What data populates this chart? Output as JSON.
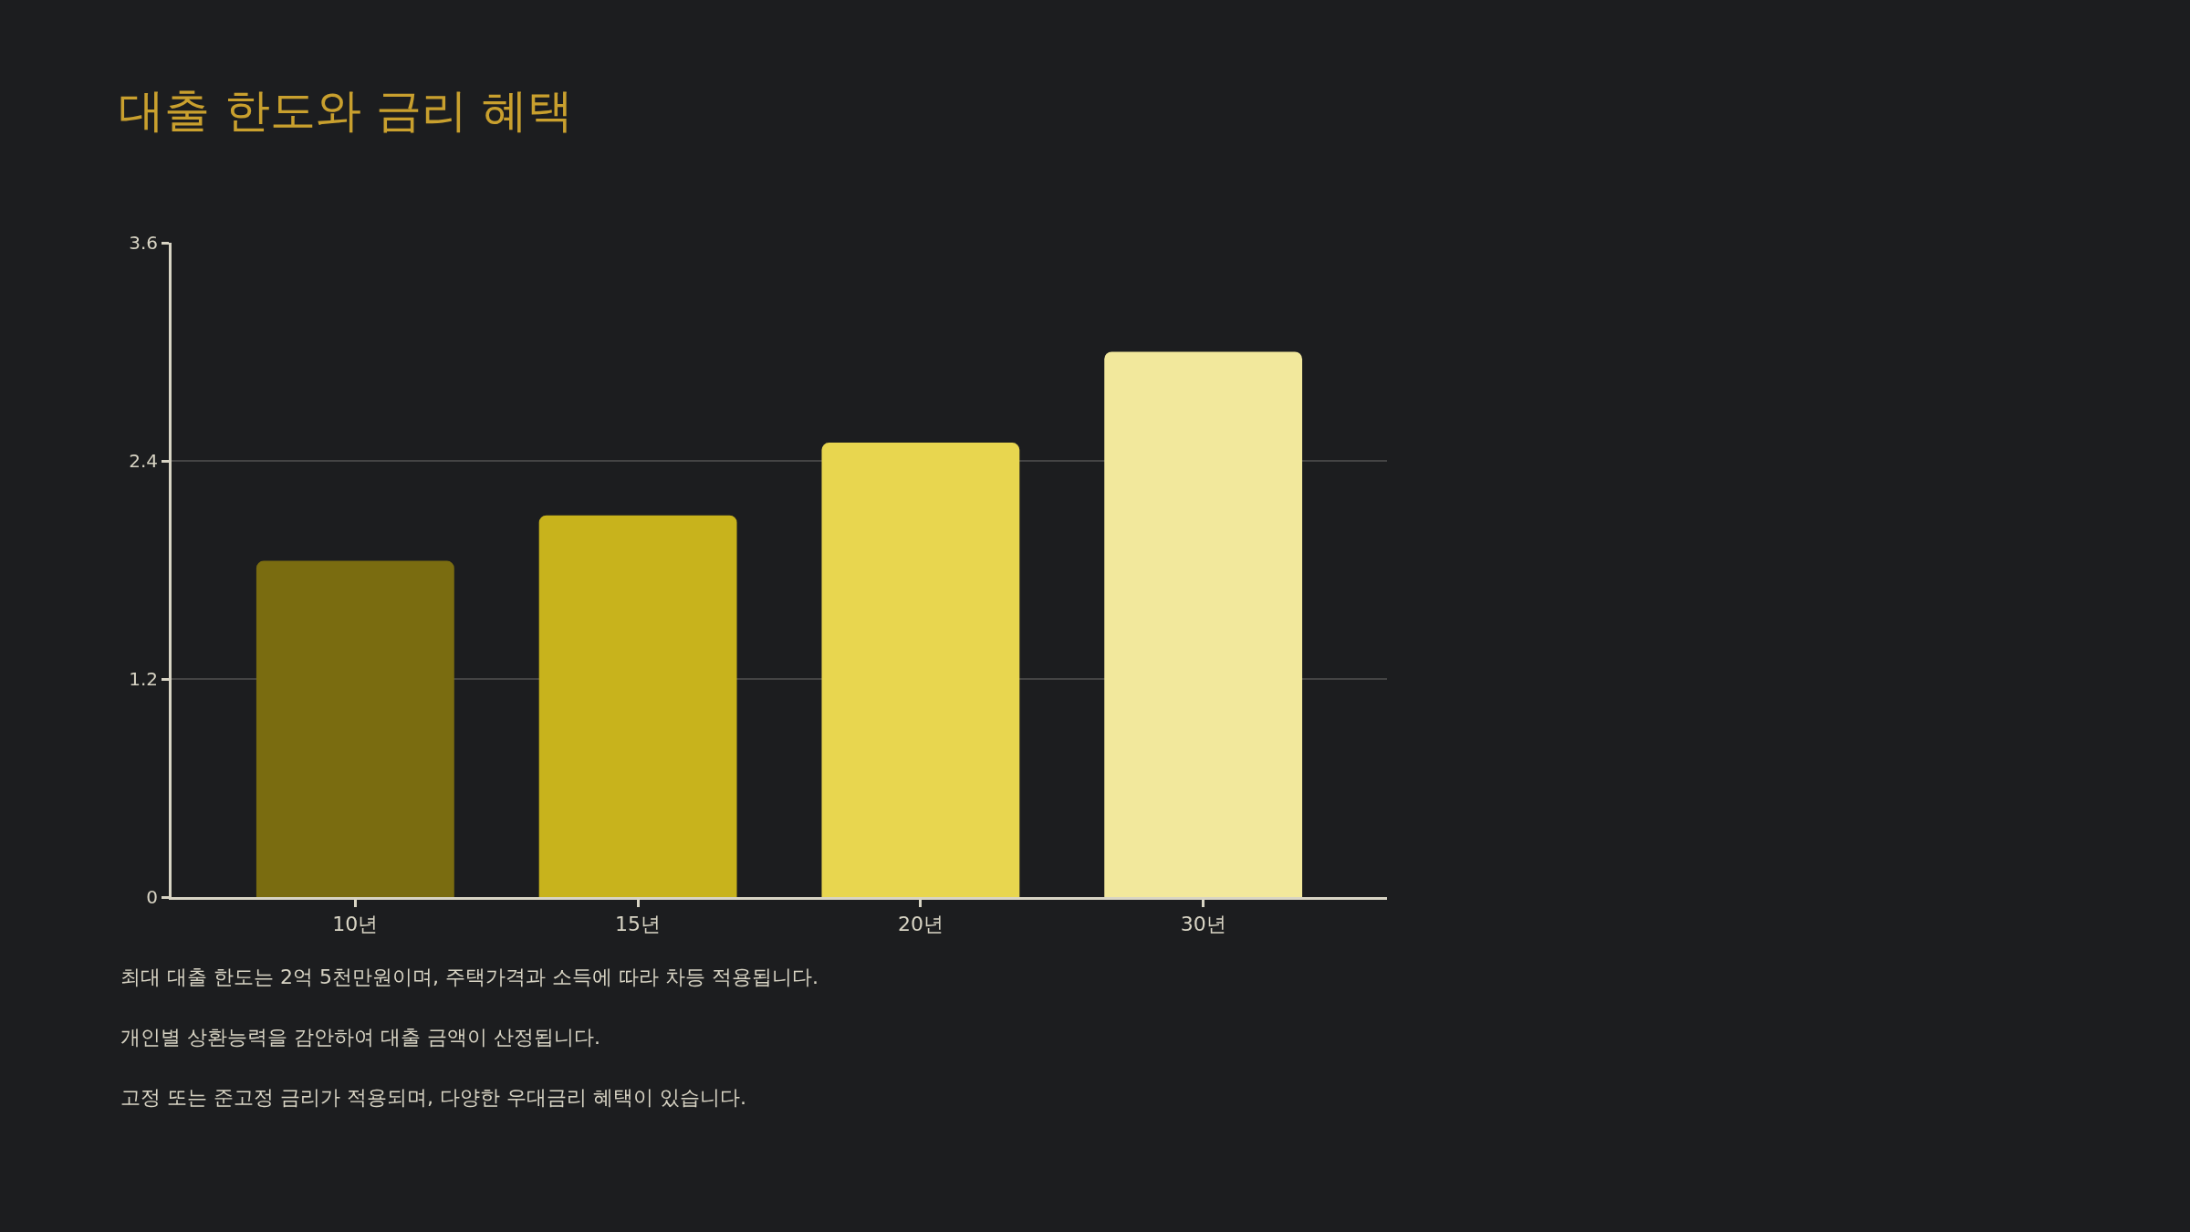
{
  "chart_data": {
    "type": "bar",
    "title": "대출 한도와 금리 혜택",
    "categories": [
      "10년",
      "15년",
      "20년",
      "30년"
    ],
    "values": [
      1.85,
      2.1,
      2.5,
      3.0
    ],
    "colors": [
      "#7a6c10",
      "#c8b31c",
      "#e8d64f",
      "#f2e89c"
    ],
    "ylim": [
      0,
      3.6
    ],
    "yticks": [
      0,
      1.2,
      2.4,
      3.6
    ],
    "grid": "y",
    "annotations": [
      "최대 대출 한도는 2억 5천만원이며, 주택가격과 소득에 따라 차등 적용됩니다.",
      "개인별 상환능력을 감안하여 대출 금액이 산정됩니다.",
      "고정 또는 준고정 금리가 적용되며, 다양한 우대금리 혜택이 있습니다."
    ]
  }
}
